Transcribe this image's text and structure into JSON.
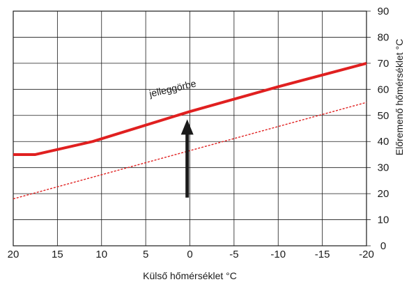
{
  "chart_data": {
    "type": "line",
    "title": "",
    "xlabel": "Külső hőmérséklet °C",
    "ylabel": "Előremenő hőmérséklet °C",
    "xlim": [
      20,
      -20
    ],
    "ylim": [
      0,
      90
    ],
    "xticks": [
      "20",
      "15",
      "10",
      "5",
      "0",
      "-5",
      "-10",
      "-15",
      "-20"
    ],
    "yticks": [
      "0",
      "10",
      "20",
      "30",
      "40",
      "50",
      "60",
      "70",
      "80",
      "90"
    ],
    "grid": true,
    "series": [
      {
        "style": "solid",
        "color": "#e02020",
        "x": [
          20,
          17.5,
          11,
          0,
          -10,
          -20
        ],
        "y": [
          35,
          35,
          40,
          51.5,
          61,
          70
        ]
      },
      {
        "style": "dashed",
        "color": "#e02020",
        "x": [
          20,
          0,
          -20
        ],
        "y": [
          18,
          36.5,
          55
        ]
      }
    ],
    "annotations": [
      {
        "text": "jelleggörbe",
        "x": 4.5,
        "y": 57
      }
    ],
    "arrow": {
      "x": 0.3,
      "from": 18.5,
      "to": 48.5,
      "color": "#1a1a1a"
    }
  }
}
